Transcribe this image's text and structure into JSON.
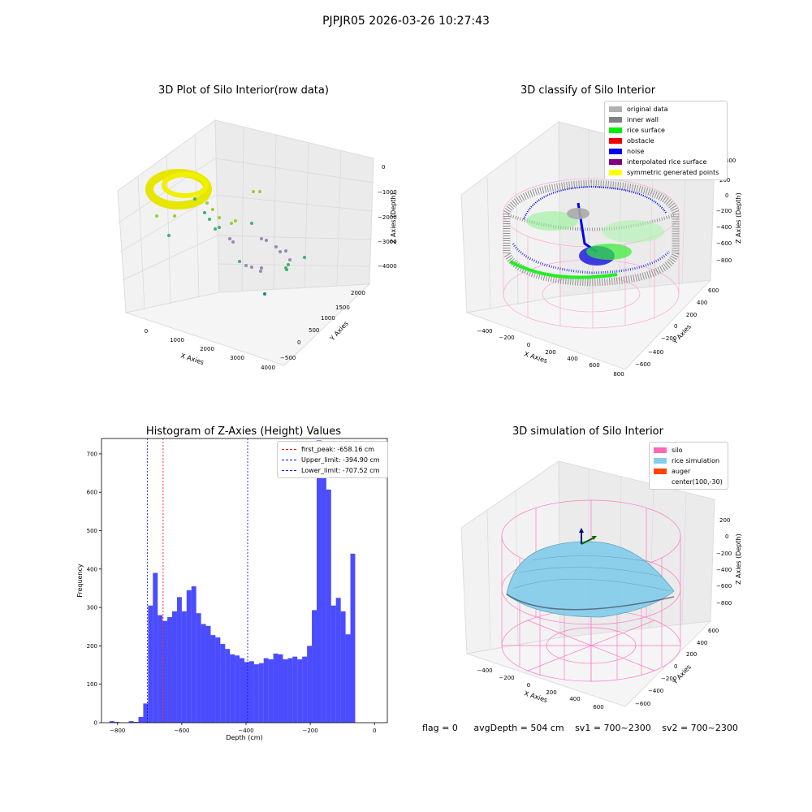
{
  "suptitle": "PJPJR05 2026-03-26 10:27:43",
  "panels": {
    "raw": {
      "title": "3D Plot of Silo Interior(row data)",
      "xlabel": "X Axies",
      "ylabel": "Y Axies",
      "zlabel": "Z Axies (Depth)",
      "xticks": [
        "0",
        "1000",
        "2000",
        "3000",
        "4000"
      ],
      "yticks": [
        "2000",
        "1500",
        "1000",
        "500",
        "0",
        "−500"
      ],
      "zticks": [
        "0",
        "−1000",
        "−2000",
        "−3000",
        "−4000"
      ]
    },
    "classify": {
      "title": "3D classify of Silo Interior",
      "xlabel": "X Axies",
      "ylabel": "Y Axies",
      "zlabel": "Z Axies (Depth)",
      "xticks": [
        "−400",
        "−200",
        "0",
        "200",
        "400",
        "600",
        "800"
      ],
      "yticks": [
        "600",
        "400",
        "200",
        "0",
        "−200",
        "−400",
        "−600"
      ],
      "zticks": [
        "400",
        "200",
        "0",
        "−200",
        "−400",
        "−600",
        "−800"
      ],
      "legend": [
        {
          "label": "original data",
          "color": "#b0b0b0"
        },
        {
          "label": "inner wall",
          "color": "#808080"
        },
        {
          "label": "rice surface",
          "color": "#00ee00"
        },
        {
          "label": "obstacle",
          "color": "#ee0000"
        },
        {
          "label": "noise",
          "color": "#0000ee"
        },
        {
          "label": "interpolated rice surface",
          "color": "#800080"
        },
        {
          "label": "symmetric generated points",
          "color": "#ffff00"
        }
      ]
    },
    "simulation": {
      "title": "3D simulation of Silo Interior",
      "xlabel": "X Axies",
      "ylabel": "Y Axies",
      "zlabel": "Z Axies (Depth)",
      "xticks": [
        "−400",
        "−200",
        "0",
        "200",
        "400",
        "600"
      ],
      "yticks": [
        "600",
        "400",
        "200",
        "0",
        "−200",
        "−400",
        "−600"
      ],
      "zticks": [
        "200",
        "0",
        "−200",
        "−400",
        "−600",
        "−800"
      ],
      "legend": [
        {
          "label": "silo",
          "color": "#ff69b4"
        },
        {
          "label": "rice simulation",
          "color": "#87ceeb"
        },
        {
          "label": "auger",
          "color": "#ff4500"
        },
        {
          "label": "center(100,-30)",
          "color": ""
        }
      ]
    }
  },
  "chart_data": {
    "type": "bar",
    "title": "Histogram of Z-Axies (Height) Values",
    "xlabel": "Depth (cm)",
    "ylabel": "Frequency",
    "xlim": [
      -850,
      40
    ],
    "ylim": [
      0,
      740
    ],
    "bar_width": 15,
    "bar_color": "#0000ff",
    "bar_alpha": 0.7,
    "xticks": [
      -800,
      -600,
      -400,
      -200,
      0
    ],
    "yticks": [
      0,
      100,
      200,
      300,
      400,
      500,
      600,
      700
    ],
    "bins": [
      {
        "x": -817.5,
        "y": 4
      },
      {
        "x": -802.5,
        "y": 2
      },
      {
        "x": -757.5,
        "y": 4
      },
      {
        "x": -742.5,
        "y": 2
      },
      {
        "x": -727.5,
        "y": 15
      },
      {
        "x": -712.5,
        "y": 50
      },
      {
        "x": -697.5,
        "y": 305
      },
      {
        "x": -682.5,
        "y": 390
      },
      {
        "x": -667.5,
        "y": 280
      },
      {
        "x": -652.5,
        "y": 265
      },
      {
        "x": -637.5,
        "y": 275
      },
      {
        "x": -622.5,
        "y": 290
      },
      {
        "x": -607.5,
        "y": 327
      },
      {
        "x": -592.5,
        "y": 290
      },
      {
        "x": -577.5,
        "y": 345
      },
      {
        "x": -562.5,
        "y": 355
      },
      {
        "x": -547.5,
        "y": 285
      },
      {
        "x": -532.5,
        "y": 257
      },
      {
        "x": -517.5,
        "y": 252
      },
      {
        "x": -502.5,
        "y": 228
      },
      {
        "x": -487.5,
        "y": 222
      },
      {
        "x": -472.5,
        "y": 205
      },
      {
        "x": -457.5,
        "y": 192
      },
      {
        "x": -442.5,
        "y": 178
      },
      {
        "x": -427.5,
        "y": 175
      },
      {
        "x": -412.5,
        "y": 168
      },
      {
        "x": -397.5,
        "y": 158
      },
      {
        "x": -382.5,
        "y": 160
      },
      {
        "x": -367.5,
        "y": 152
      },
      {
        "x": -352.5,
        "y": 155
      },
      {
        "x": -337.5,
        "y": 168
      },
      {
        "x": -322.5,
        "y": 165
      },
      {
        "x": -307.5,
        "y": 180
      },
      {
        "x": -292.5,
        "y": 178
      },
      {
        "x": -277.5,
        "y": 165
      },
      {
        "x": -262.5,
        "y": 168
      },
      {
        "x": -247.5,
        "y": 172
      },
      {
        "x": -232.5,
        "y": 165
      },
      {
        "x": -217.5,
        "y": 172
      },
      {
        "x": -202.5,
        "y": 200
      },
      {
        "x": -187.5,
        "y": 293
      },
      {
        "x": -172.5,
        "y": 735
      },
      {
        "x": -157.5,
        "y": 648
      },
      {
        "x": -142.5,
        "y": 607
      },
      {
        "x": -127.5,
        "y": 305
      },
      {
        "x": -112.5,
        "y": 325
      },
      {
        "x": -97.5,
        "y": 290
      },
      {
        "x": -82.5,
        "y": 230
      },
      {
        "x": -67.5,
        "y": 440
      }
    ],
    "vlines": [
      {
        "x": -658.16,
        "color": "#ff0000",
        "label": "first_peak: -658.16 cm"
      },
      {
        "x": -394.9,
        "color": "#0000ff",
        "label": "Upper_limit: -394.90 cm"
      },
      {
        "x": -707.52,
        "color": "#0000ff",
        "label": "Lower_limit: -707.52 cm"
      }
    ],
    "legend_position": "top-right"
  },
  "footer": {
    "flag": "flag = 0",
    "avg": "avgDepth = 504 cm",
    "sv1": "sv1 = 700~2300",
    "sv2": "sv2 = 700~2300"
  }
}
